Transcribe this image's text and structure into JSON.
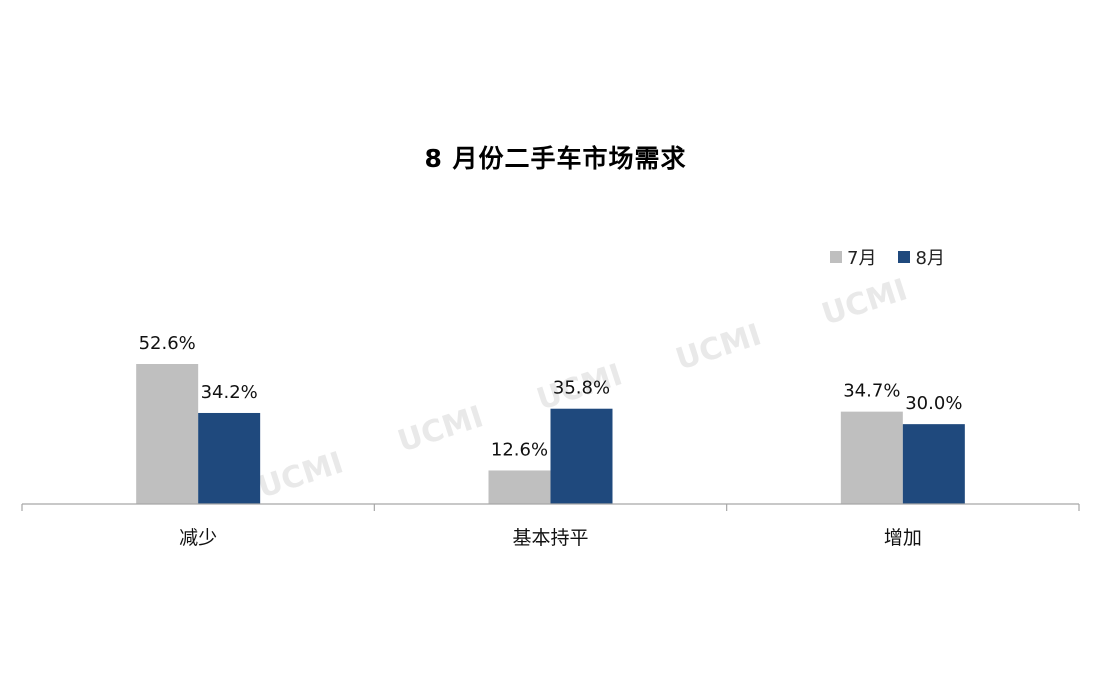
{
  "chart_data": {
    "type": "bar",
    "title": "8 月份二手车市场需求",
    "categories": [
      "减少",
      "基本持平",
      "增加"
    ],
    "series": [
      {
        "name": "7月",
        "values": [
          52.6,
          12.6,
          34.7
        ],
        "labels": [
          "52.6%",
          "12.6%",
          "34.7%"
        ],
        "color": "#bfbfbf"
      },
      {
        "name": "8月",
        "values": [
          34.2,
          35.8,
          30.0
        ],
        "labels": [
          "34.2%",
          "35.8%",
          "30.0%"
        ],
        "color": "#1f497d"
      }
    ],
    "xlabel": "",
    "ylabel": "",
    "ylim": [
      0,
      100
    ],
    "grid": false,
    "legend_position": "top-right",
    "watermark": "UCMI"
  }
}
